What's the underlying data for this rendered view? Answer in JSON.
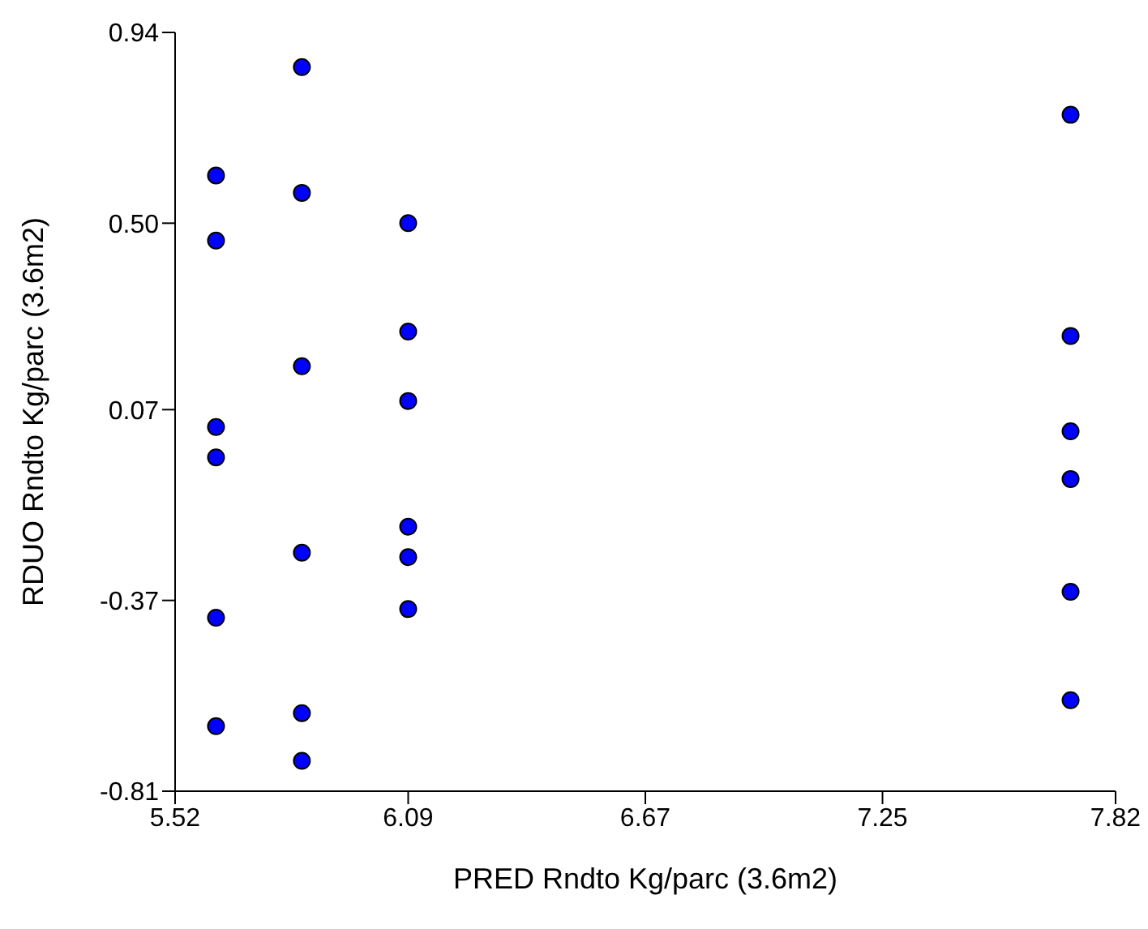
{
  "chart_data": {
    "type": "scatter",
    "xlabel": "PRED Rndto Kg/parc (3.6m2)",
    "ylabel": "RDUO Rndto Kg/parc (3.6m2)",
    "x": [
      5.62,
      5.62,
      5.62,
      5.62,
      5.62,
      5.62,
      5.83,
      5.83,
      5.83,
      5.83,
      5.83,
      5.83,
      6.09,
      6.09,
      6.09,
      6.09,
      6.09,
      6.09,
      7.71,
      7.71,
      7.71,
      7.71,
      7.71,
      7.71
    ],
    "series": [
      {
        "color": "#0000ff",
        "values": [
          0.61,
          0.46,
          0.03,
          -0.04,
          -0.41,
          -0.66,
          0.86,
          0.57,
          0.17,
          -0.26,
          -0.63,
          -0.74,
          0.5,
          0.25,
          0.09,
          -0.2,
          -0.27,
          -0.39,
          0.75,
          0.24,
          0.02,
          -0.09,
          -0.35,
          -0.6
        ]
      }
    ],
    "xlim": [
      5.52,
      7.82
    ],
    "xticks": [
      5.52,
      6.09,
      6.67,
      7.25,
      7.82
    ],
    "ylim": [
      -0.81,
      0.94
    ],
    "yticks": [
      -0.81,
      -0.37,
      0.07,
      {
        "value": 0.5,
        "label": "0.50"
      },
      0.94
    ],
    "grid": false,
    "legend": false,
    "marker": "circle"
  }
}
